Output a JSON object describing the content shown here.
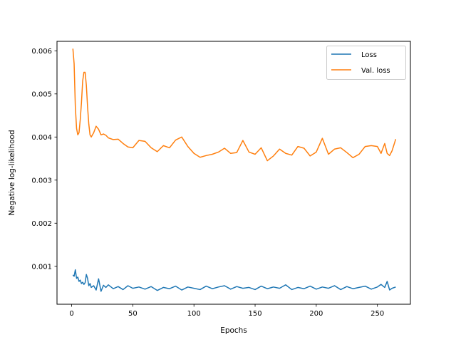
{
  "chart_data": {
    "type": "line",
    "title": "",
    "xlabel": "Epochs",
    "ylabel": "Negative log-likelihood",
    "xlim": [
      -12,
      277
    ],
    "ylim": [
      0.00012,
      0.00622
    ],
    "xticks": [
      0,
      50,
      100,
      150,
      200,
      250
    ],
    "xtick_labels": [
      "0",
      "50",
      "100",
      "150",
      "200",
      "250"
    ],
    "yticks": [
      0.001,
      0.002,
      0.003,
      0.004,
      0.005,
      0.006
    ],
    "ytick_labels": [
      "0.001",
      "0.002",
      "0.003",
      "0.004",
      "0.005",
      "0.006"
    ],
    "grid": false,
    "legend_position": "top-right",
    "series": [
      {
        "name": "Loss",
        "color": "#1f77b4",
        "x": [
          1,
          2,
          3,
          4,
          5,
          6,
          7,
          8,
          9,
          10,
          11,
          12,
          13,
          14,
          15,
          16,
          18,
          20,
          22,
          24,
          26,
          28,
          30,
          34,
          38,
          42,
          46,
          50,
          55,
          60,
          65,
          70,
          75,
          80,
          85,
          90,
          95,
          100,
          105,
          110,
          115,
          120,
          125,
          130,
          135,
          140,
          145,
          150,
          155,
          160,
          165,
          170,
          175,
          180,
          185,
          190,
          195,
          200,
          205,
          210,
          215,
          220,
          225,
          230,
          235,
          240,
          245,
          250,
          253,
          256,
          258,
          260,
          262,
          265
        ],
        "y": [
          0.0008,
          0.00077,
          0.00092,
          0.00072,
          0.00075,
          0.00065,
          0.00068,
          0.0006,
          0.00063,
          0.00058,
          0.00062,
          0.00081,
          0.00072,
          0.00055,
          0.0006,
          0.00051,
          0.00055,
          0.00045,
          0.00071,
          0.00042,
          0.00056,
          0.00051,
          0.00057,
          0.00048,
          0.00053,
          0.00046,
          0.00055,
          0.00049,
          0.00052,
          0.00047,
          0.00053,
          0.00044,
          0.00051,
          0.00048,
          0.00054,
          0.00045,
          0.00052,
          0.00049,
          0.00046,
          0.00054,
          0.00048,
          0.00052,
          0.00055,
          0.00047,
          0.00053,
          0.00049,
          0.00051,
          0.00046,
          0.00054,
          0.00048,
          0.00052,
          0.00049,
          0.00057,
          0.00046,
          0.00051,
          0.00048,
          0.00054,
          0.00047,
          0.00052,
          0.00049,
          0.00055,
          0.00046,
          0.00053,
          0.00048,
          0.00051,
          0.00054,
          0.00047,
          0.00052,
          0.00058,
          0.00051,
          0.00065,
          0.00045,
          0.00049,
          0.00052
        ]
      },
      {
        "name": "Val. loss",
        "color": "#ff7f0e",
        "x": [
          1,
          2,
          3,
          4,
          5,
          6,
          7,
          8,
          9,
          10,
          11,
          12,
          13,
          14,
          15,
          16,
          18,
          20,
          22,
          24,
          26,
          28,
          30,
          34,
          38,
          42,
          46,
          50,
          55,
          60,
          65,
          70,
          75,
          80,
          85,
          90,
          95,
          100,
          105,
          110,
          115,
          120,
          125,
          130,
          135,
          140,
          145,
          150,
          155,
          160,
          165,
          170,
          175,
          180,
          185,
          190,
          195,
          200,
          205,
          210,
          215,
          220,
          225,
          230,
          235,
          240,
          245,
          250,
          253,
          256,
          258,
          260,
          262,
          265
        ],
        "y": [
          0.00605,
          0.0057,
          0.0047,
          0.0042,
          0.00405,
          0.0041,
          0.0044,
          0.0048,
          0.0053,
          0.0055,
          0.0055,
          0.0052,
          0.0047,
          0.0043,
          0.00405,
          0.004,
          0.0041,
          0.00425,
          0.00418,
          0.00405,
          0.00407,
          0.00404,
          0.00398,
          0.00394,
          0.00395,
          0.00385,
          0.00377,
          0.00375,
          0.00392,
          0.0039,
          0.00375,
          0.00366,
          0.0038,
          0.00375,
          0.00393,
          0.004,
          0.00378,
          0.00362,
          0.00353,
          0.00357,
          0.0036,
          0.00365,
          0.00374,
          0.00362,
          0.00364,
          0.00392,
          0.00365,
          0.0036,
          0.00375,
          0.00345,
          0.00356,
          0.00372,
          0.00362,
          0.00358,
          0.00378,
          0.00374,
          0.00356,
          0.00365,
          0.00397,
          0.0036,
          0.00372,
          0.00375,
          0.00364,
          0.00352,
          0.0036,
          0.00378,
          0.0038,
          0.00378,
          0.00362,
          0.00385,
          0.00362,
          0.00357,
          0.00368,
          0.00395
        ]
      }
    ]
  }
}
